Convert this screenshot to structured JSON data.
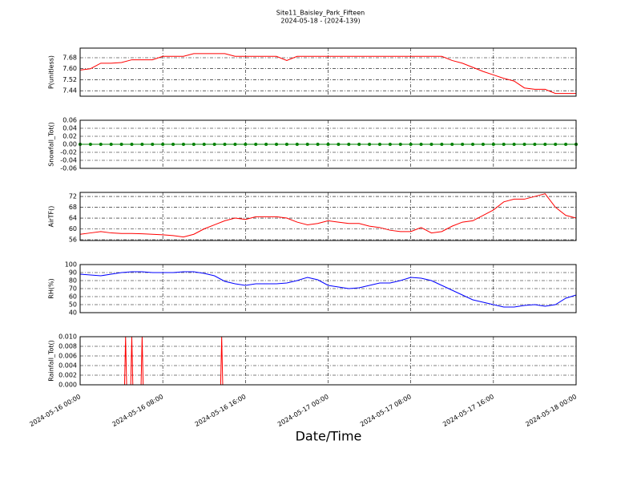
{
  "chart_data": [
    {
      "type": "line",
      "title": "Site11_Baisley_Park_Fifteen",
      "subtitle": "2024-05-18 - (2024-139)",
      "ylabel": "P(unitless)",
      "x": [
        0,
        1,
        2,
        3,
        4,
        5,
        6,
        7,
        8,
        9,
        10,
        11,
        12,
        13,
        14,
        15,
        16,
        17,
        18,
        19,
        20,
        21,
        22,
        23,
        24,
        25,
        26,
        27,
        28,
        29,
        30,
        31,
        32,
        33,
        34,
        35,
        36,
        37,
        38,
        39,
        40,
        41,
        42,
        43,
        44,
        45,
        46,
        47,
        48
      ],
      "xlim": [
        0,
        48
      ],
      "ylim": [
        7.4,
        7.75
      ],
      "yticks": [
        {
          "value": 7.44,
          "label": "7.44"
        },
        {
          "value": 7.52,
          "label": "7.52"
        },
        {
          "value": 7.6,
          "label": "7.60"
        },
        {
          "value": 7.68,
          "label": "7.68"
        }
      ],
      "grid": true,
      "series": [
        {
          "color": "#ff0000",
          "values": [
            7.59,
            7.6,
            7.64,
            7.64,
            7.645,
            7.665,
            7.665,
            7.665,
            7.69,
            7.69,
            7.69,
            7.71,
            7.71,
            7.71,
            7.71,
            7.69,
            7.69,
            7.69,
            7.69,
            7.69,
            7.66,
            7.69,
            7.69,
            7.69,
            7.69,
            7.69,
            7.69,
            7.69,
            7.69,
            7.69,
            7.69,
            7.69,
            7.69,
            7.69,
            7.69,
            7.69,
            7.66,
            7.64,
            7.61,
            7.58,
            7.555,
            7.53,
            7.51,
            7.46,
            7.45,
            7.45,
            7.42,
            7.42,
            7.42
          ]
        }
      ]
    },
    {
      "type": "line",
      "ylabel": "Snowfall_Tot()",
      "markers": true,
      "x": [
        0,
        1,
        2,
        3,
        4,
        5,
        6,
        7,
        8,
        9,
        10,
        11,
        12,
        13,
        14,
        15,
        16,
        17,
        18,
        19,
        20,
        21,
        22,
        23,
        24,
        25,
        26,
        27,
        28,
        29,
        30,
        31,
        32,
        33,
        34,
        35,
        36,
        37,
        38,
        39,
        40,
        41,
        42,
        43,
        44,
        45,
        46,
        47,
        48
      ],
      "xlim": [
        0,
        48
      ],
      "ylim": [
        -0.06,
        0.06
      ],
      "yticks": [
        -0.06,
        -0.04,
        -0.02,
        {
          "value": 0,
          "label": "0.00"
        },
        0.02,
        0.04,
        0.06
      ],
      "grid": true,
      "series": [
        {
          "color": "#008000",
          "values": [
            0,
            0,
            0,
            0,
            0,
            0,
            0,
            0,
            0,
            0,
            0,
            0,
            0,
            0,
            0,
            0,
            0,
            0,
            0,
            0,
            0,
            0,
            0,
            0,
            0,
            0,
            0,
            0,
            0,
            0,
            0,
            0,
            0,
            0,
            0,
            0,
            0,
            0,
            0,
            0,
            0,
            0,
            0,
            0,
            0,
            0,
            0,
            0,
            0
          ]
        }
      ]
    },
    {
      "type": "line",
      "ylabel": "AirTF()",
      "x": [
        0,
        1,
        2,
        3,
        4,
        5,
        6,
        7,
        8,
        9,
        10,
        11,
        12,
        13,
        14,
        15,
        16,
        17,
        18,
        19,
        20,
        21,
        22,
        23,
        24,
        25,
        26,
        27,
        28,
        29,
        30,
        31,
        32,
        33,
        34,
        35,
        36,
        37,
        38,
        39,
        40,
        41,
        42,
        43,
        44,
        45,
        46,
        47,
        48
      ],
      "xlim": [
        0,
        48
      ],
      "ylim": [
        55.7,
        73.5
      ],
      "yticks": [
        56,
        60,
        64,
        68,
        72
      ],
      "grid": true,
      "series": [
        {
          "color": "#ff0000",
          "values": [
            58,
            58.5,
            59,
            58.5,
            58.3,
            58.3,
            58.2,
            58,
            57.8,
            57.5,
            57,
            58,
            60,
            61.5,
            63,
            64,
            63.5,
            64.5,
            64.5,
            64.5,
            64,
            62.5,
            61.5,
            62,
            63,
            62.5,
            62,
            62,
            61,
            60.5,
            59.5,
            59,
            59,
            60.5,
            58.5,
            59,
            61,
            62.5,
            63,
            65,
            67,
            70,
            71,
            71,
            72,
            73,
            68,
            65,
            64
          ]
        }
      ]
    },
    {
      "type": "line",
      "ylabel": "RH(%)",
      "x": [
        0,
        1,
        2,
        3,
        4,
        5,
        6,
        7,
        8,
        9,
        10,
        11,
        12,
        13,
        14,
        15,
        16,
        17,
        18,
        19,
        20,
        21,
        22,
        23,
        24,
        25,
        26,
        27,
        28,
        29,
        30,
        31,
        32,
        33,
        34,
        35,
        36,
        37,
        38,
        39,
        40,
        41,
        42,
        43,
        44,
        45,
        46,
        47,
        48
      ],
      "xlim": [
        0,
        48
      ],
      "ylim": [
        40,
        100
      ],
      "yticks": [
        40,
        50,
        60,
        70,
        80,
        90,
        100
      ],
      "grid": true,
      "series": [
        {
          "color": "#0000ff",
          "values": [
            88,
            87,
            86,
            88,
            90,
            91,
            91,
            90,
            90,
            90,
            91,
            91,
            89,
            86,
            79,
            76,
            74,
            76,
            76,
            76,
            77,
            80,
            84,
            81,
            74,
            72,
            70,
            71,
            74,
            77,
            77,
            80,
            84,
            83,
            80,
            74,
            68,
            62,
            56,
            53,
            50,
            47,
            47,
            49,
            50,
            48,
            50,
            58,
            62
          ]
        }
      ]
    },
    {
      "type": "line",
      "ylabel": "Rainfall_Tot()",
      "xlabel": "Date/Time",
      "x": [
        0,
        4.3,
        4.4,
        4.5,
        4.9,
        5.0,
        5.1,
        5.9,
        6.0,
        6.1,
        13.6,
        13.7,
        13.8,
        48
      ],
      "xlim": [
        0,
        48
      ],
      "ylim": [
        0,
        0.01
      ],
      "xticks": [
        {
          "value": 0,
          "label": "2024-05-16 00:00"
        },
        {
          "value": 8,
          "label": "2024-05-16 08:00"
        },
        {
          "value": 16,
          "label": "2024-05-16 16:00"
        },
        {
          "value": 24,
          "label": "2024-05-17 00:00"
        },
        {
          "value": 32,
          "label": "2024-05-17 08:00"
        },
        {
          "value": 40,
          "label": "2024-05-17 16:00"
        },
        {
          "value": 48,
          "label": "2024-05-18 00:00"
        }
      ],
      "yticks": [
        {
          "value": 0,
          "label": "0.000"
        },
        {
          "value": 0.002,
          "label": "0.002"
        },
        {
          "value": 0.004,
          "label": "0.004"
        },
        {
          "value": 0.006,
          "label": "0.006"
        },
        {
          "value": 0.008,
          "label": "0.008"
        },
        {
          "value": 0.01,
          "label": "0.010"
        }
      ],
      "grid": true,
      "series": [
        {
          "color": "#ff0000",
          "values": [
            0,
            0,
            0.01,
            0,
            0,
            0.01,
            0,
            0,
            0.01,
            0,
            0,
            0.01,
            0,
            0
          ]
        }
      ]
    }
  ]
}
